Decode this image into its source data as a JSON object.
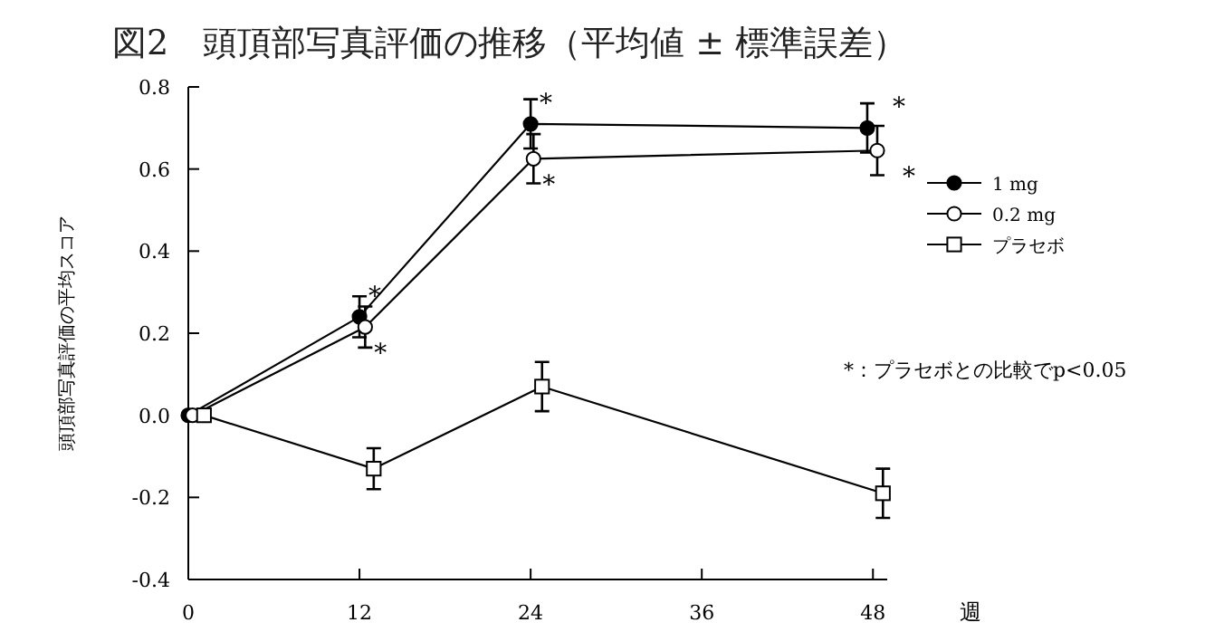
{
  "chart_data": {
    "type": "line",
    "title": "図2　頭頂部写真評価の推移（平均値 ± 標準誤差）",
    "xlabel": "週",
    "ylabel": "頭頂部写真評価の平均スコア",
    "xlim": [
      0,
      49
    ],
    "xticks": [
      0,
      12,
      24,
      36,
      48
    ],
    "ylim": [
      -0.4,
      0.8
    ],
    "yticks": [
      {
        "value": 0.8,
        "label": "0.8"
      },
      {
        "value": 0.6,
        "label": "0.6"
      },
      {
        "value": 0.4,
        "label": "0.4"
      },
      {
        "value": 0.2,
        "label": "0.2"
      },
      {
        "value": 0,
        "label": "0.0"
      },
      {
        "value": -0.2,
        "label": "-0.2"
      },
      {
        "value": -0.4,
        "label": "-0.4"
      }
    ],
    "legend": "right",
    "grid": false,
    "line_style": "solid",
    "series": [
      {
        "name": "1 mg",
        "color": "#000000",
        "marker": "circle",
        "x": [
          0,
          12,
          24,
          47.6
        ],
        "values": [
          0,
          0.24,
          0.71,
          0.7
        ],
        "errors": [
          null,
          0.05,
          0.06,
          0.06
        ]
      },
      {
        "name": "0.2 mg",
        "color": "#ffffff",
        "marker": "circle",
        "x": [
          0.3,
          12.4,
          24.2,
          48.3
        ],
        "values": [
          0,
          0.215,
          0.625,
          0.645
        ],
        "errors": [
          null,
          0.05,
          0.06,
          0.06
        ]
      },
      {
        "name": "プラセボ",
        "color": "#ffffff",
        "marker": "square",
        "x": [
          1.1,
          13,
          24.8,
          48.7
        ],
        "values": [
          0,
          -0.13,
          0.07,
          -0.19
        ],
        "errors": [
          null,
          0.05,
          0.06,
          0.06
        ]
      }
    ],
    "annotations": [
      {
        "text": "*",
        "x": 12,
        "y": 0.24
      },
      {
        "text": "*",
        "x": 12.4,
        "y": 0.215
      },
      {
        "text": "*",
        "x": 24,
        "y": 0.71
      },
      {
        "text": "*",
        "x": 24.2,
        "y": 0.625
      },
      {
        "text": "*",
        "x": 47.6,
        "y": 0.7
      },
      {
        "text": "*",
        "x": 48.3,
        "y": 0.645
      },
      "*：プラセボとの比較でp<0.05"
    ]
  }
}
